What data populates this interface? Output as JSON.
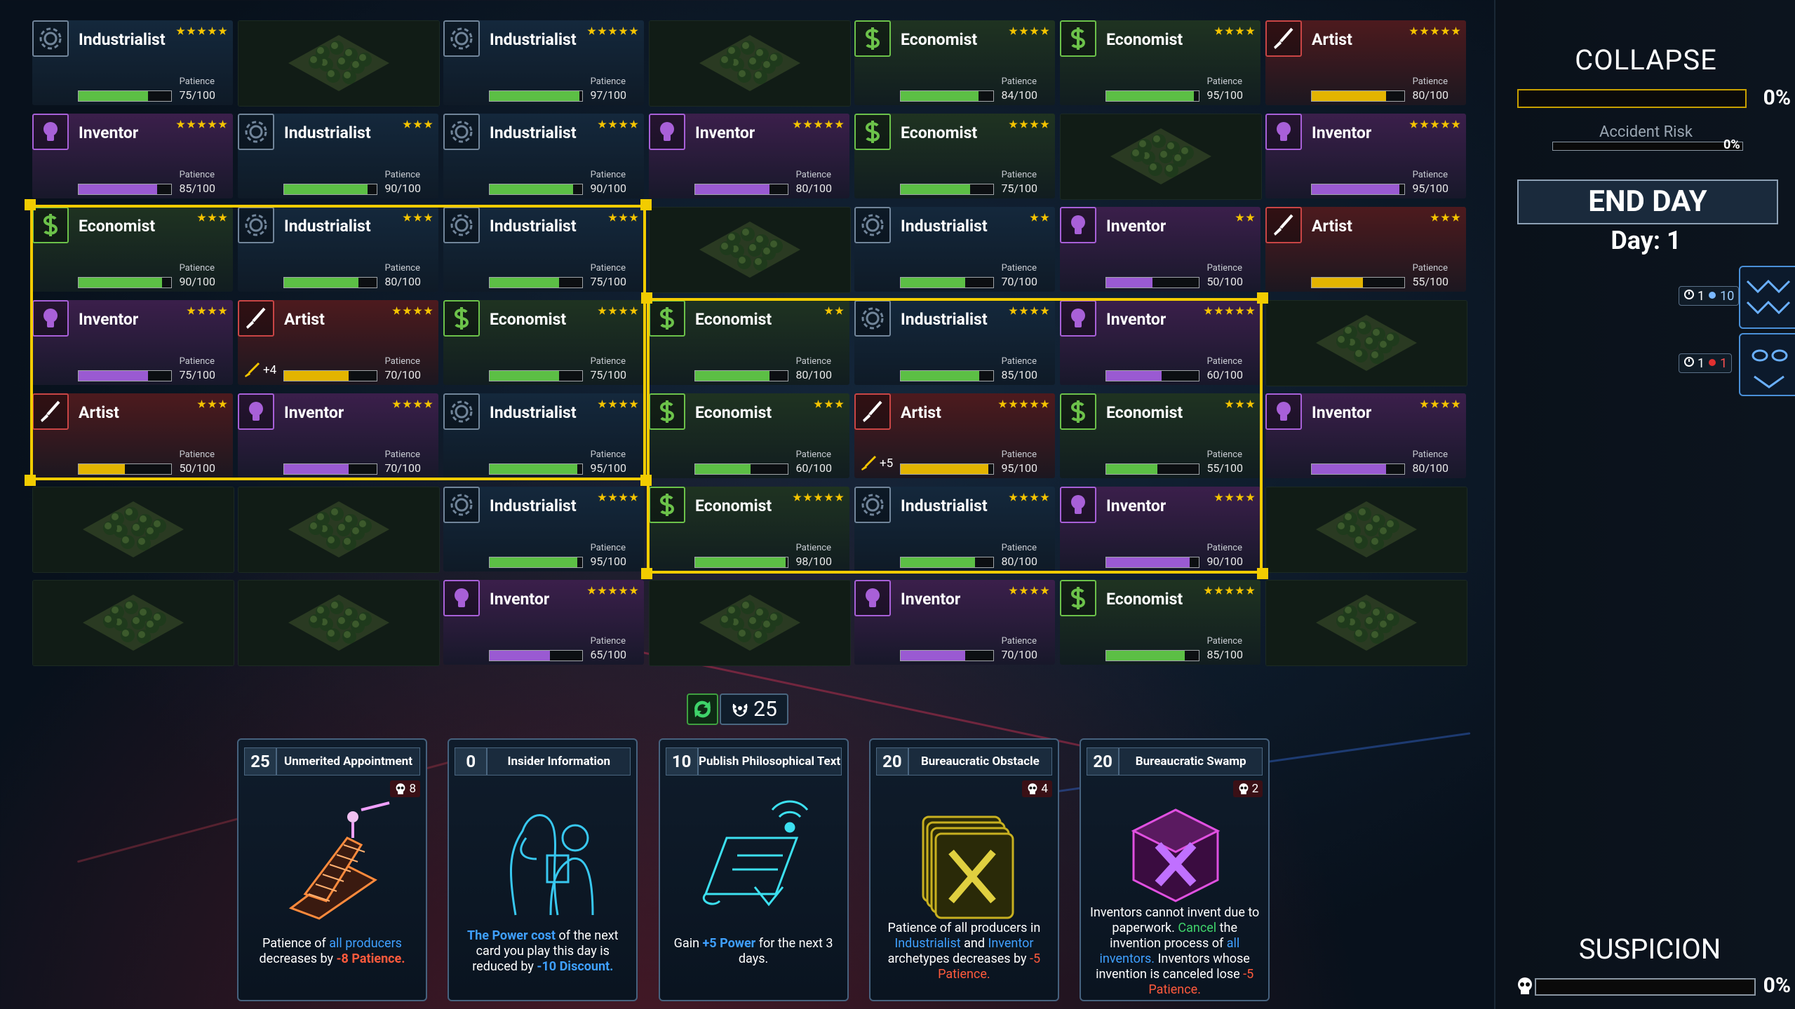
{
  "grid": {
    "patience_caption": "Patience",
    "archetypes": [
      {
        "name": "Industrialist",
        "bg": "#14283c",
        "border": "#71859a",
        "bar": "#5cbf45",
        "icon": "gear"
      },
      {
        "name": "Economist",
        "bg": "#1f3321",
        "border": "#6cc24a",
        "bar": "#5cbf45",
        "icon": "dollar"
      },
      {
        "name": "Artist",
        "bg": "#4d1a1e",
        "border": "#c94545",
        "bar": "#e3b400",
        "icon": "brush"
      },
      {
        "name": "Inventor",
        "bg": "#3b1f4b",
        "border": "#a860d8",
        "bar": "#9a5ad2",
        "icon": "bulb"
      }
    ],
    "rows": [
      [
        {
          "a": 0,
          "stars": 5,
          "patience": {
            "value": 75,
            "max": 100,
            "label": "75/100"
          }
        },
        null,
        {
          "a": 0,
          "stars": 5,
          "patience": {
            "value": 97,
            "max": 100,
            "label": "97/100"
          }
        },
        null,
        {
          "a": 1,
          "stars": 4,
          "patience": {
            "value": 84,
            "max": 100,
            "label": "84/100"
          }
        },
        {
          "a": 1,
          "stars": 4,
          "patience": {
            "value": 95,
            "max": 100,
            "label": "95/100"
          }
        },
        {
          "a": 2,
          "stars": 5,
          "patience": {
            "value": 80,
            "max": 100,
            "label": "80/100"
          }
        }
      ],
      [
        {
          "a": 3,
          "stars": 5,
          "patience": {
            "value": 85,
            "max": 100,
            "label": "85/100"
          }
        },
        {
          "a": 0,
          "stars": 3,
          "patience": {
            "value": 90,
            "max": 100,
            "label": "90/100"
          }
        },
        {
          "a": 0,
          "stars": 4,
          "patience": {
            "value": 90,
            "max": 100,
            "label": "90/100"
          }
        },
        {
          "a": 3,
          "stars": 5,
          "patience": {
            "value": 80,
            "max": 100,
            "label": "80/100"
          }
        },
        {
          "a": 1,
          "stars": 4,
          "patience": {
            "value": 75,
            "max": 100,
            "label": "75/100"
          }
        },
        null,
        {
          "a": 3,
          "stars": 5,
          "patience": {
            "value": 95,
            "max": 100,
            "label": "95/100"
          }
        }
      ],
      [
        {
          "a": 1,
          "stars": 3,
          "patience": {
            "value": 90,
            "max": 100,
            "label": "90/100"
          }
        },
        {
          "a": 0,
          "stars": 3,
          "patience": {
            "value": 80,
            "max": 100,
            "label": "80/100"
          }
        },
        {
          "a": 0,
          "stars": 3,
          "patience": {
            "value": 75,
            "max": 100,
            "label": "75/100"
          }
        },
        null,
        {
          "a": 0,
          "stars": 2,
          "patience": {
            "value": 70,
            "max": 100,
            "label": "70/100"
          }
        },
        {
          "a": 3,
          "stars": 2,
          "patience": {
            "value": 50,
            "max": 100,
            "label": "50/100"
          }
        },
        {
          "a": 2,
          "stars": 3,
          "patience": {
            "value": 55,
            "max": 100,
            "label": "55/100"
          }
        }
      ],
      [
        {
          "a": 3,
          "stars": 4,
          "patience": {
            "value": 75,
            "max": 100,
            "label": "75/100"
          }
        },
        {
          "a": 2,
          "stars": 4,
          "patience": {
            "value": 70,
            "max": 100,
            "label": "70/100"
          },
          "bonus": {
            "value": 4,
            "label": "+4"
          }
        },
        {
          "a": 1,
          "stars": 4,
          "patience": {
            "value": 75,
            "max": 100,
            "label": "75/100"
          }
        },
        {
          "a": 1,
          "stars": 2,
          "patience": {
            "value": 80,
            "max": 100,
            "label": "80/100"
          }
        },
        {
          "a": 0,
          "stars": 4,
          "patience": {
            "value": 85,
            "max": 100,
            "label": "85/100"
          }
        },
        {
          "a": 3,
          "stars": 5,
          "patience": {
            "value": 60,
            "max": 100,
            "label": "60/100"
          }
        },
        null
      ],
      [
        {
          "a": 2,
          "stars": 3,
          "patience": {
            "value": 50,
            "max": 100,
            "label": "50/100"
          }
        },
        {
          "a": 3,
          "stars": 4,
          "patience": {
            "value": 70,
            "max": 100,
            "label": "70/100"
          }
        },
        {
          "a": 0,
          "stars": 4,
          "patience": {
            "value": 95,
            "max": 100,
            "label": "95/100"
          }
        },
        {
          "a": 1,
          "stars": 3,
          "patience": {
            "value": 60,
            "max": 100,
            "label": "60/100"
          }
        },
        {
          "a": 2,
          "stars": 5,
          "patience": {
            "value": 95,
            "max": 100,
            "label": "95/100"
          },
          "bonus": {
            "value": 5,
            "label": "+5"
          }
        },
        {
          "a": 1,
          "stars": 3,
          "patience": {
            "value": 55,
            "max": 100,
            "label": "55/100"
          }
        },
        {
          "a": 3,
          "stars": 4,
          "patience": {
            "value": 80,
            "max": 100,
            "label": "80/100"
          }
        }
      ],
      [
        null,
        null,
        {
          "a": 0,
          "stars": 4,
          "patience": {
            "value": 95,
            "max": 100,
            "label": "95/100"
          }
        },
        {
          "a": 1,
          "stars": 5,
          "patience": {
            "value": 98,
            "max": 100,
            "label": "98/100"
          }
        },
        {
          "a": 0,
          "stars": 4,
          "patience": {
            "value": 80,
            "max": 100,
            "label": "80/100"
          }
        },
        {
          "a": 3,
          "stars": 4,
          "patience": {
            "value": 90,
            "max": 100,
            "label": "90/100"
          }
        },
        null
      ],
      [
        null,
        null,
        {
          "a": 3,
          "stars": 5,
          "patience": {
            "value": 65,
            "max": 100,
            "label": "65/100"
          }
        },
        null,
        {
          "a": 3,
          "stars": 4,
          "patience": {
            "value": 70,
            "max": 100,
            "label": "70/100"
          }
        },
        {
          "a": 1,
          "stars": 5,
          "patience": {
            "value": 85,
            "max": 100,
            "label": "85/100"
          }
        },
        null
      ]
    ]
  },
  "power": 25,
  "cards": [
    {
      "cost": 25,
      "title": "Unmerited Appointment",
      "skulls": 8,
      "text": [
        {
          "text": "Patience of "
        },
        {
          "text": "all producers",
          "color": "#3fa0ff"
        },
        {
          "text": " decreases by "
        },
        {
          "text": "-8 Patience.",
          "color": "#ff5a3c",
          "bold": true
        }
      ]
    },
    {
      "cost": 0,
      "title": "Insider Information",
      "text": [
        {
          "text": "The Power cost",
          "color": "#3fa0ff",
          "bold": true
        },
        {
          "text": " of the next card you play this day is reduced by "
        },
        {
          "text": "-10 Discount.",
          "color": "#3fa0ff",
          "bold": true
        }
      ]
    },
    {
      "cost": 10,
      "title": "Publish Philosophical Text",
      "text": [
        {
          "text": "Gain "
        },
        {
          "text": "+5 Power",
          "color": "#3fa0ff",
          "bold": true
        },
        {
          "text": " for the next 3 days."
        }
      ]
    },
    {
      "cost": 20,
      "title": "Bureaucratic Obstacle",
      "skulls": 4,
      "text": [
        {
          "text": "Patience of all producers in "
        },
        {
          "text": "Industrialist",
          "color": "#3fa0ff"
        },
        {
          "text": " and "
        },
        {
          "text": "Inventor",
          "color": "#3fa0ff"
        },
        {
          "text": " archetypes decreases by "
        },
        {
          "text": "-5 Patience.",
          "color": "#ff5a3c"
        }
      ]
    },
    {
      "cost": 20,
      "title": "Bureaucratic Swamp",
      "skulls": 2,
      "text": [
        {
          "text": "Inventors cannot invent due to paperwork. "
        },
        {
          "text": "Cancel",
          "color": "#3fd36a"
        },
        {
          "text": " the invention process of "
        },
        {
          "text": "all inventors.",
          "color": "#3fa0ff"
        },
        {
          "text": " Inventors whose invention is canceled lose "
        },
        {
          "text": "-5 Patience.",
          "color": "#ff5a3c"
        }
      ]
    }
  ],
  "collapse": {
    "title": "COLLAPSE",
    "value": 0,
    "label": "0%",
    "accident_risk": {
      "title": "Accident Risk",
      "value": 0,
      "label": "0%"
    }
  },
  "end_day": "END DAY",
  "day": "Day: 1",
  "effects": [
    {
      "turns": 1,
      "amount": 10
    },
    {
      "turns": 1,
      "amount": 1
    }
  ],
  "suspicion": {
    "title": "SUSPICION",
    "value": 0,
    "label": "0%"
  }
}
